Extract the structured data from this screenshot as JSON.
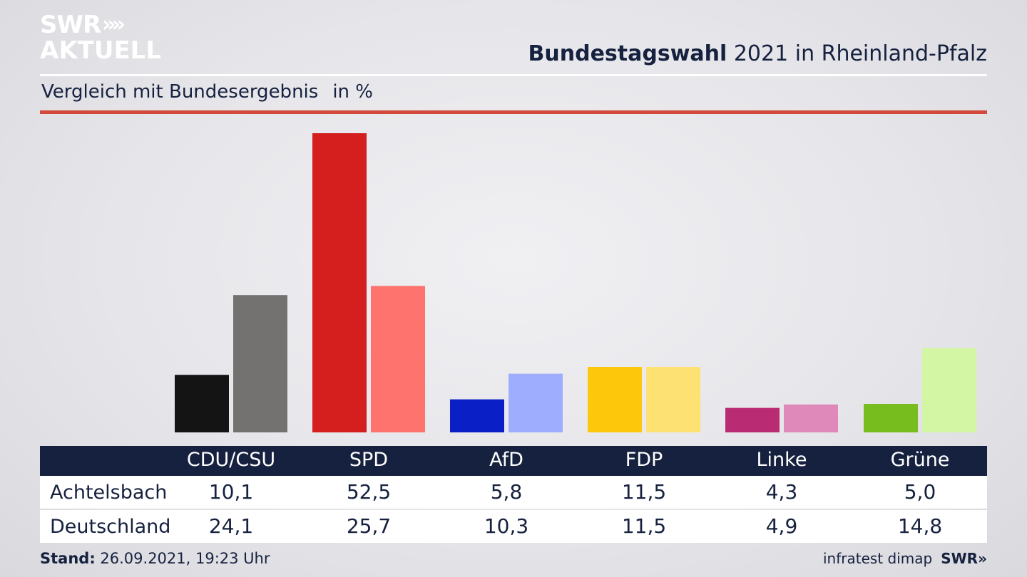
{
  "logo": {
    "line1": "SWR",
    "chevrons": "»",
    "line2": "AKTUELL"
  },
  "header": {
    "title_bold": "Bundestagswahl",
    "title_rest": " 2021 in Rheinland-Pfalz"
  },
  "subtitle": {
    "text": "Vergleich mit Bundesergebnis",
    "unit": "in %"
  },
  "table": {
    "rows": [
      {
        "label": "Achtelsbach",
        "values": [
          "10,1",
          "52,5",
          "5,8",
          "11,5",
          "4,3",
          "5,0"
        ]
      },
      {
        "label": "Deutschland",
        "values": [
          "24,1",
          "25,7",
          "10,3",
          "11,5",
          "4,9",
          "14,8"
        ]
      }
    ]
  },
  "footer": {
    "stand_label": "Stand:",
    "stand_value": " 26.09.2021, 19:23 Uhr",
    "source": "infratest dimap",
    "brand": "SWR»"
  },
  "chart_data": {
    "type": "bar",
    "title": "Bundestagswahl 2021 in Rheinland-Pfalz",
    "subtitle": "Vergleich mit Bundesergebnis",
    "ylabel": "in %",
    "categories": [
      "CDU/CSU",
      "SPD",
      "AfD",
      "FDP",
      "Linke",
      "Grüne"
    ],
    "series": [
      {
        "name": "Achtelsbach",
        "values": [
          10.1,
          52.5,
          5.8,
          11.5,
          4.3,
          5.0
        ]
      },
      {
        "name": "Deutschland",
        "values": [
          24.1,
          25.7,
          10.3,
          11.5,
          4.9,
          14.8
        ]
      }
    ],
    "colors_local": [
      "#141414",
      "#d51e1e",
      "#0a20c6",
      "#fdc80b",
      "#b92c73",
      "#77bd1e"
    ],
    "colors_national": [
      "#747270",
      "#fe736d",
      "#9fadfe",
      "#fde173",
      "#de89b9",
      "#d2f6a3"
    ],
    "ylim": [
      0,
      53
    ]
  }
}
